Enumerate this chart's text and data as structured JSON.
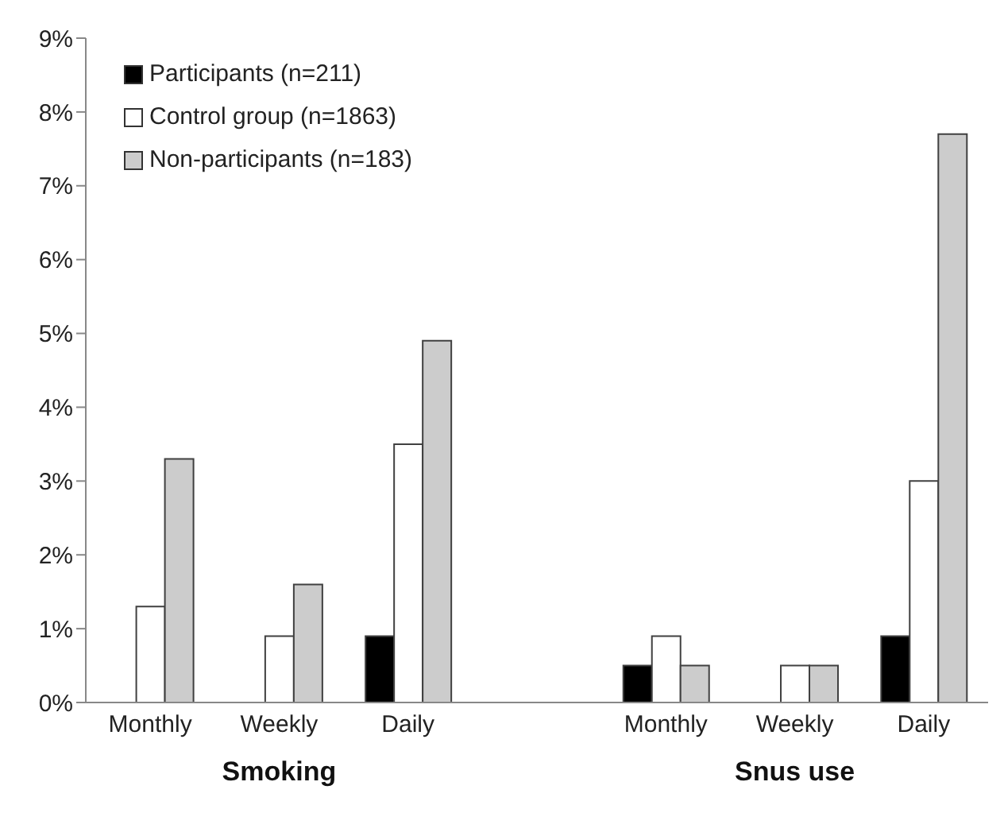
{
  "chart_data": {
    "type": "bar",
    "categories": [
      "Monthly",
      "Weekly",
      "Daily",
      null,
      "Monthly",
      "Weekly",
      "Daily"
    ],
    "series": [
      {
        "name": "Participants (n=211)",
        "color": "#000000",
        "values": [
          0,
          0,
          0.9,
          null,
          0.5,
          0,
          0.9
        ]
      },
      {
        "name": "Control group (n=1863)",
        "color": "#ffffff",
        "values": [
          1.3,
          0.9,
          3.5,
          null,
          0.9,
          0.5,
          3.0
        ]
      },
      {
        "name": "Non-participants (n=183)",
        "color": "#cccccc",
        "values": [
          3.3,
          1.6,
          4.9,
          null,
          0.5,
          0.5,
          7.7
        ]
      }
    ],
    "ylim": [
      0,
      9
    ],
    "yticks": [
      {
        "value": 0,
        "label": "0%"
      },
      {
        "value": 1,
        "label": "1%"
      },
      {
        "value": 2,
        "label": "2%"
      },
      {
        "value": 3,
        "label": "3%"
      },
      {
        "value": 4,
        "label": "4%"
      },
      {
        "value": 5,
        "label": "5%"
      },
      {
        "value": 6,
        "label": "6%"
      },
      {
        "value": 7,
        "label": "7%"
      },
      {
        "value": 8,
        "label": "8%"
      },
      {
        "value": 9,
        "label": "9%"
      }
    ],
    "annotations": [
      "Smoking",
      "Snus use"
    ],
    "grid": false,
    "legend": "top left"
  }
}
